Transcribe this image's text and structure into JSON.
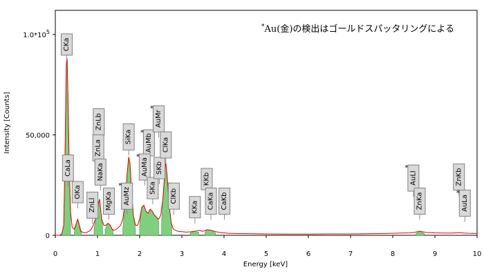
{
  "chart_data": {
    "type": "area",
    "xlabel": "Energy [keV]",
    "ylabel": "Intensity [Counts]",
    "xlim": [
      0,
      10
    ],
    "ylim": [
      0,
      112000
    ],
    "xticks": [
      0,
      1,
      2,
      3,
      4,
      5,
      6,
      7,
      8,
      9,
      10
    ],
    "yticks": [
      {
        "value": 0,
        "label": "0"
      },
      {
        "value": 50000,
        "label": "50,000"
      },
      {
        "value": 100000,
        "label": "1.0*10⁵"
      }
    ],
    "grid": false,
    "annotation": "*Au(金)の検出はゴールドスパッタリングによる",
    "colors": {
      "spectrum_line": "#e00000",
      "peak_fill": "#7fcf7f",
      "peak_fill_stroke": "#3a9a3a",
      "label_box": "#d9d9d9",
      "label_border": "#808080"
    },
    "spectrum": {
      "x": [
        0.0,
        0.05,
        0.1,
        0.15,
        0.2,
        0.23,
        0.26,
        0.28,
        0.3,
        0.33,
        0.36,
        0.4,
        0.45,
        0.5,
        0.53,
        0.56,
        0.6,
        0.65,
        0.7,
        0.75,
        0.8,
        0.85,
        0.9,
        0.95,
        1.0,
        1.02,
        1.05,
        1.08,
        1.1,
        1.15,
        1.2,
        1.25,
        1.3,
        1.35,
        1.4,
        1.45,
        1.5,
        1.55,
        1.6,
        1.65,
        1.7,
        1.74,
        1.77,
        1.8,
        1.85,
        1.9,
        1.95,
        2.0,
        2.05,
        2.1,
        2.15,
        2.2,
        2.25,
        2.3,
        2.35,
        2.4,
        2.45,
        2.5,
        2.55,
        2.6,
        2.62,
        2.65,
        2.7,
        2.75,
        2.8,
        2.85,
        2.9,
        3.0,
        3.1,
        3.2,
        3.3,
        3.4,
        3.5,
        3.6,
        3.69,
        3.8,
        3.9,
        4.0,
        4.1,
        4.3,
        4.6,
        5.0,
        5.5,
        6.0,
        6.5,
        7.0,
        7.5,
        7.8,
        8.0,
        8.2,
        8.4,
        8.5,
        8.64,
        8.8,
        9.0,
        9.2,
        9.4,
        9.57,
        9.7,
        9.8,
        10.0
      ],
      "y": [
        0,
        0,
        0,
        500,
        5000,
        40000,
        85000,
        88000,
        70000,
        35000,
        12000,
        4000,
        3000,
        6000,
        8000,
        6000,
        2000,
        1500,
        1200,
        1500,
        2000,
        3000,
        5000,
        8000,
        12000,
        16000,
        18000,
        12000,
        8000,
        5000,
        5000,
        6000,
        5000,
        3000,
        2500,
        3000,
        4000,
        5000,
        8000,
        15000,
        30000,
        39000,
        36000,
        25000,
        10000,
        5000,
        5000,
        8000,
        14000,
        15000,
        12000,
        11000,
        13000,
        12000,
        10000,
        9000,
        8000,
        10000,
        18000,
        33000,
        36000,
        30000,
        15000,
        6000,
        3000,
        2500,
        2000,
        1800,
        1600,
        1700,
        2000,
        2500,
        2000,
        2800,
        2500,
        1800,
        1400,
        1200,
        1000,
        900,
        800,
        700,
        600,
        600,
        700,
        700,
        800,
        900,
        1000,
        1100,
        1200,
        1400,
        2000,
        1400,
        1200,
        1100,
        1100,
        1300,
        1100,
        1000,
        900
      ]
    },
    "peak_regions": [
      {
        "name": "CKa",
        "x": [
          0.15,
          0.2,
          0.23,
          0.26,
          0.28,
          0.3,
          0.33,
          0.36
        ],
        "y": [
          500,
          5000,
          40000,
          85000,
          88000,
          70000,
          35000,
          10000
        ]
      },
      {
        "name": "OKa",
        "x": [
          0.45,
          0.5,
          0.53,
          0.56,
          0.62
        ],
        "y": [
          1500,
          6000,
          8000,
          6000,
          1500
        ]
      },
      {
        "name": "NaKa",
        "x": [
          0.92,
          0.95,
          1.0,
          1.02,
          1.05,
          1.08,
          1.12
        ],
        "y": [
          3000,
          8000,
          12000,
          16000,
          18000,
          12000,
          5000
        ]
      },
      {
        "name": "MgKa",
        "x": [
          1.18,
          1.25,
          1.3,
          1.37
        ],
        "y": [
          3000,
          6000,
          5000,
          2500
        ]
      },
      {
        "name": "SiKa",
        "x": [
          1.6,
          1.65,
          1.7,
          1.74,
          1.77,
          1.8,
          1.85,
          1.9
        ],
        "y": [
          3000,
          15000,
          30000,
          39000,
          36000,
          25000,
          10000,
          3000
        ]
      },
      {
        "name": "AuMa",
        "x": [
          2.0,
          2.05,
          2.1,
          2.15,
          2.2,
          2.25,
          2.3,
          2.35,
          2.4,
          2.45
        ],
        "y": [
          6000,
          14000,
          15000,
          12000,
          11000,
          13000,
          12000,
          10000,
          9000,
          7000
        ]
      },
      {
        "name": "ClKa",
        "x": [
          2.52,
          2.55,
          2.6,
          2.62,
          2.65,
          2.7,
          2.76
        ],
        "y": [
          7000,
          18000,
          33000,
          36000,
          30000,
          15000,
          4000
        ]
      },
      {
        "name": "KKa",
        "x": [
          3.2,
          3.3,
          3.4
        ],
        "y": [
          1200,
          2000,
          1500
        ]
      },
      {
        "name": "CaKa",
        "x": [
          3.55,
          3.6,
          3.69,
          3.8
        ],
        "y": [
          1500,
          2800,
          2500,
          1200
        ]
      },
      {
        "name": "ZnKa",
        "x": [
          8.55,
          8.64,
          8.75
        ],
        "y": [
          900,
          2000,
          900
        ]
      }
    ],
    "peak_labels": [
      {
        "text": "CKa",
        "x": 0.27,
        "y": 95000
      },
      {
        "text": "CaLa",
        "x": 0.3,
        "y": 33500
      },
      {
        "text": "OKa",
        "x": 0.53,
        "y": 21500
      },
      {
        "text": "ZnLl",
        "x": 0.88,
        "y": 15000
      },
      {
        "text": "ZnLb",
        "x": 1.03,
        "y": 56500
      },
      {
        "text": "ZnLa",
        "x": 1.02,
        "y": 43500
      },
      {
        "text": "NaKa",
        "x": 1.07,
        "y": 31500
      },
      {
        "text": "MgKa",
        "x": 1.27,
        "y": 17000
      },
      {
        "text": "*AuMz",
        "x": 1.7,
        "y": 19500
      },
      {
        "text": "SiKa",
        "x": 1.74,
        "y": 49000
      },
      {
        "text": "*AuMb",
        "x": 2.22,
        "y": 46000
      },
      {
        "text": "*AuMr",
        "x": 2.45,
        "y": 58000
      },
      {
        "text": "*AuMa",
        "x": 2.12,
        "y": 34000
      },
      {
        "text": "SKa",
        "x": 2.31,
        "y": 23500
      },
      {
        "text": "SKb",
        "x": 2.47,
        "y": 33500
      },
      {
        "text": "ClKa",
        "x": 2.62,
        "y": 45000
      },
      {
        "text": "ClKb",
        "x": 2.81,
        "y": 19500
      },
      {
        "text": "KKa",
        "x": 3.31,
        "y": 14000
      },
      {
        "text": "KKb",
        "x": 3.59,
        "y": 28000
      },
      {
        "text": "CaKa",
        "x": 3.69,
        "y": 17000
      },
      {
        "text": "CaKb",
        "x": 4.01,
        "y": 17000
      },
      {
        "text": "*AuLl",
        "x": 8.49,
        "y": 28500
      },
      {
        "text": "ZnKa",
        "x": 8.64,
        "y": 17000
      },
      {
        "text": "ZnKb",
        "x": 9.57,
        "y": 29000
      },
      {
        "text": "*AuLa",
        "x": 9.71,
        "y": 16000
      }
    ]
  }
}
